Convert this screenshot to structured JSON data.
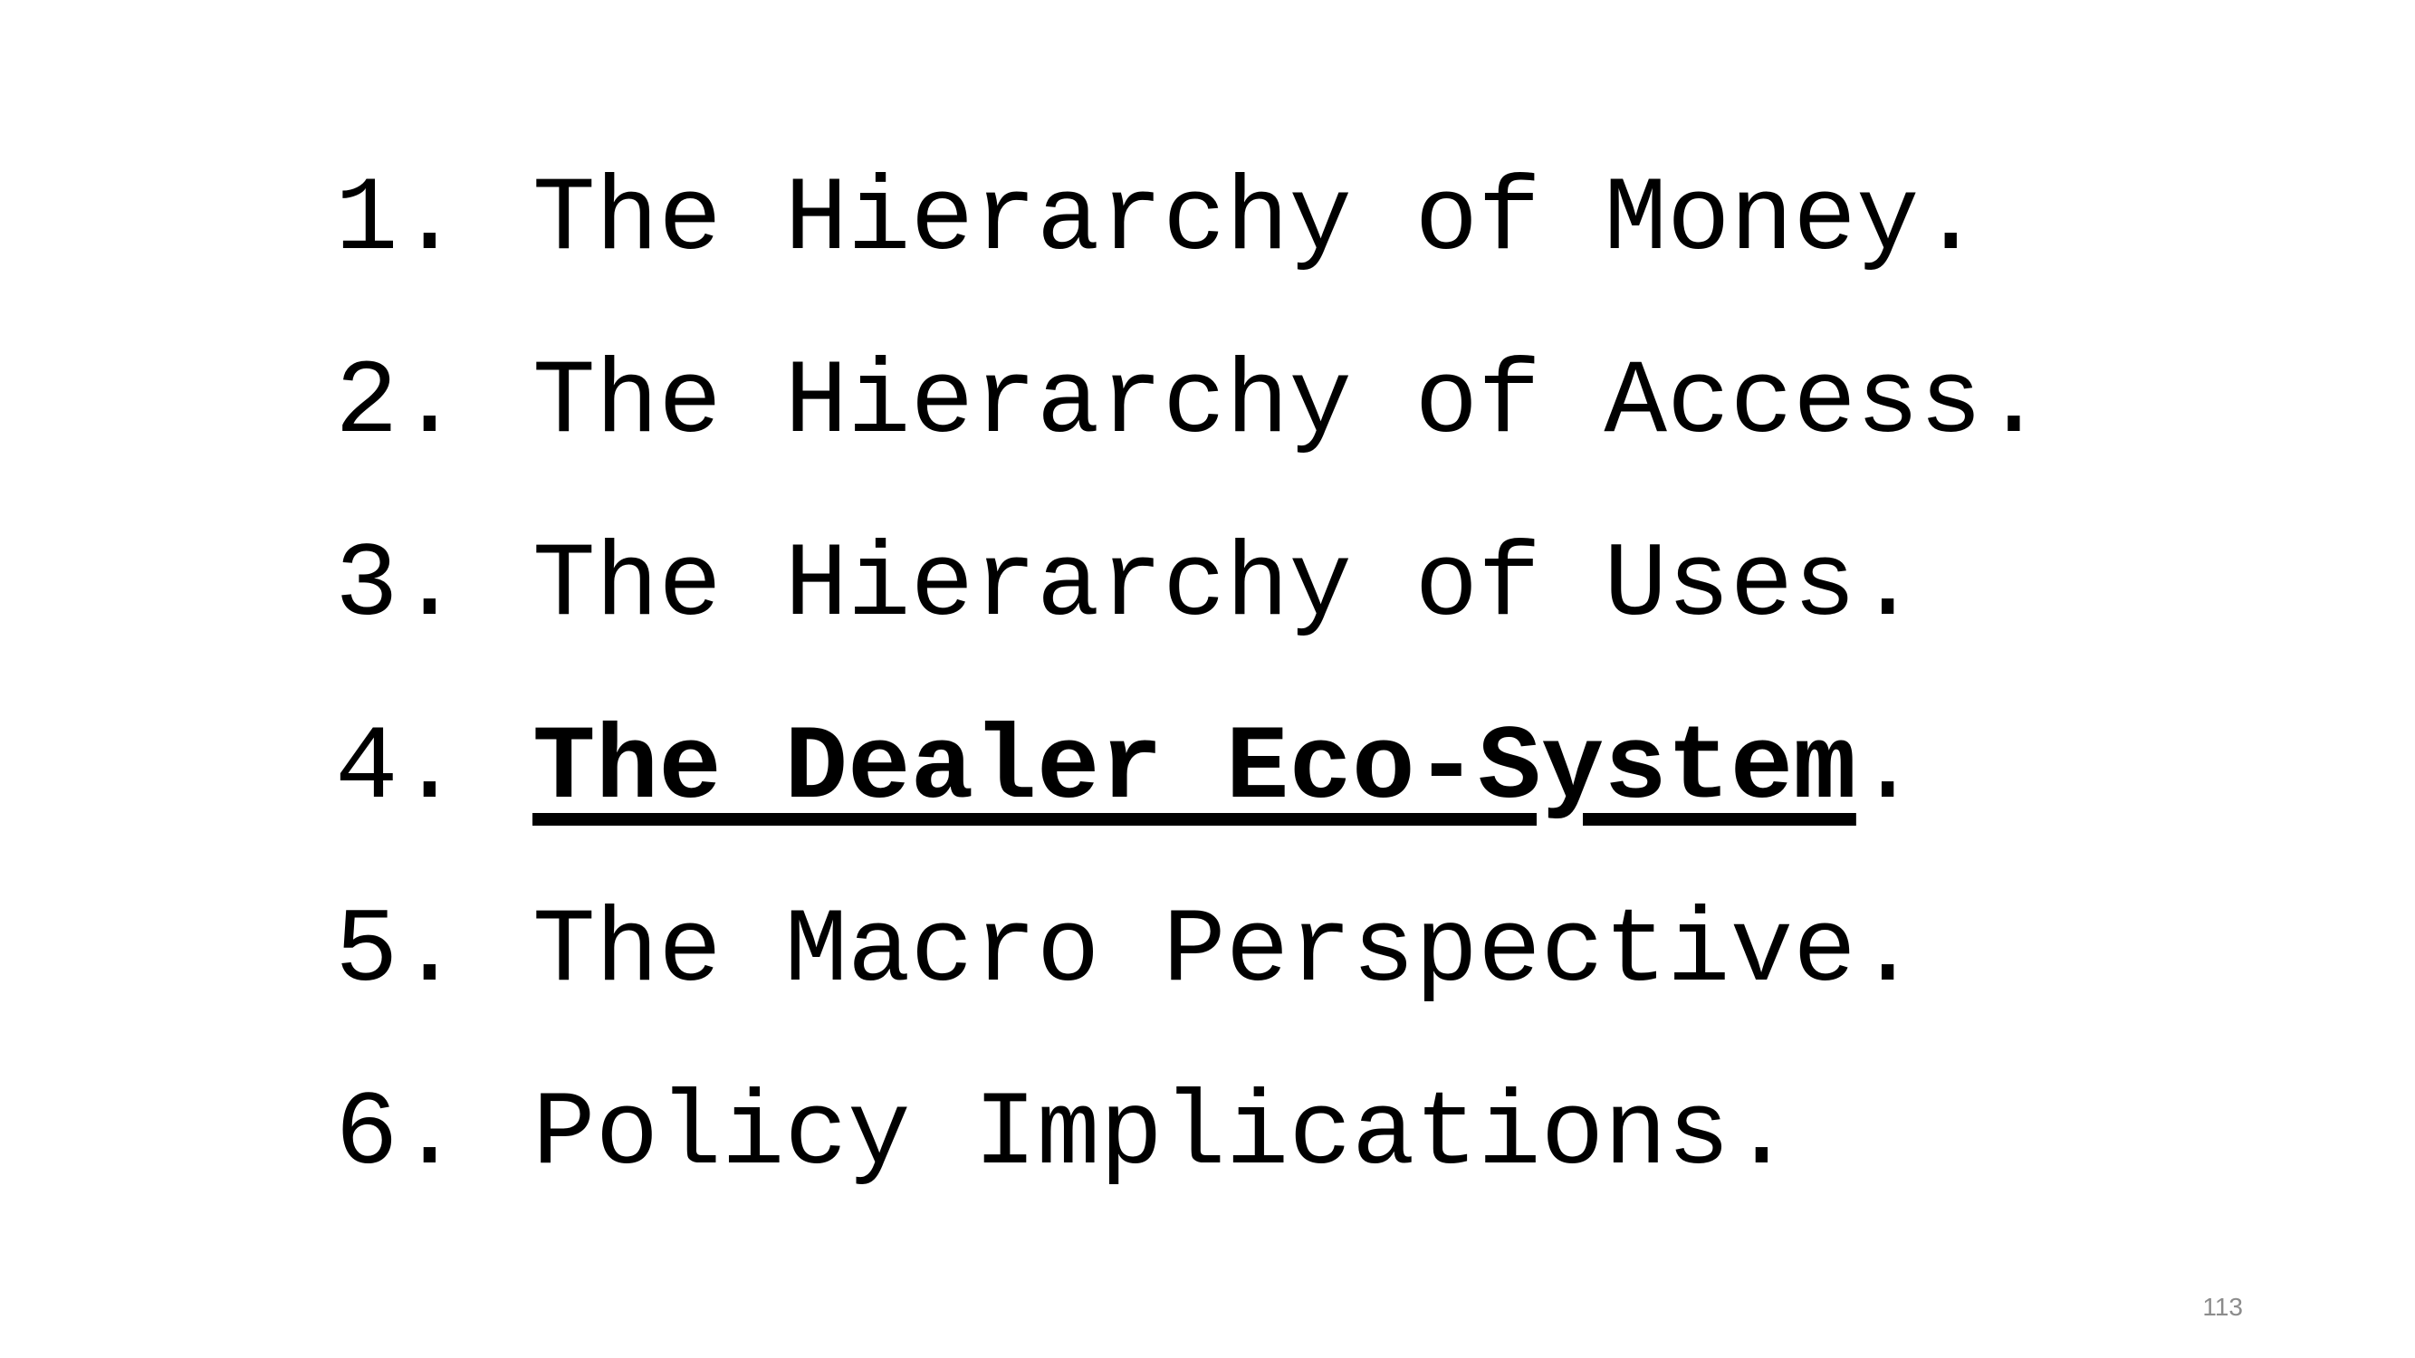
{
  "agenda": {
    "items": [
      {
        "number": "1.",
        "text": "The Hierarchy of Money",
        "suffix": "."
      },
      {
        "number": "2.",
        "text": "The Hierarchy of Access",
        "suffix": "."
      },
      {
        "number": "3.",
        "text": "The Hierarchy of Uses",
        "suffix": "."
      },
      {
        "number": "4.",
        "text": "The Dealer Eco-System",
        "suffix": ".",
        "active": true
      },
      {
        "number": "5.",
        "text": "The Macro Perspective",
        "suffix": "."
      },
      {
        "number": "6.",
        "text": "Policy Implications",
        "suffix": "."
      }
    ]
  },
  "footer": {
    "page_number": "113"
  }
}
